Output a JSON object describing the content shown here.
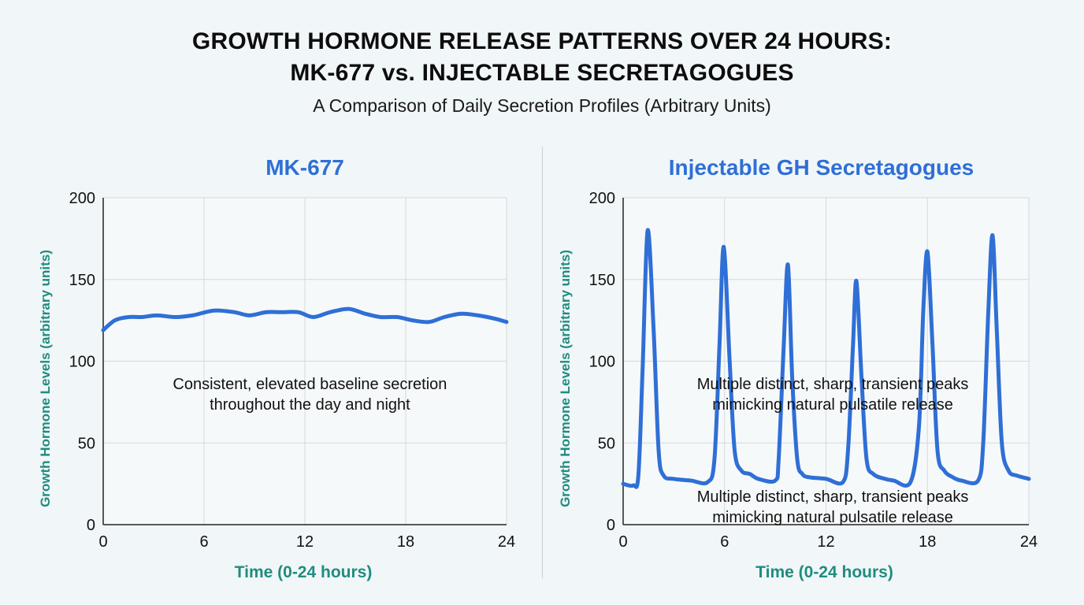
{
  "header": {
    "title_line1": "GROWTH HORMONE RELEASE PATTERNS OVER 24 HOURS:",
    "title_line2": "MK-677 vs. INJECTABLE SECRETAGOGUES",
    "subtitle": "A Comparison of Daily Secretion Profiles (Arbitrary Units)"
  },
  "colors": {
    "line": "#2f6fd6",
    "panel_title": "#2f6fd6",
    "axis_label": "#1f8c7e",
    "grid": "#d3d9dd",
    "axis": "#222222"
  },
  "chart_data": [
    {
      "type": "line",
      "title": "MK-677",
      "xlabel": "Time (0-24 hours)",
      "ylabel": "Growth Hormone Levels (arbitrary units)",
      "xlim": [
        0,
        24
      ],
      "ylim": [
        0,
        200
      ],
      "xticks": [
        0,
        6,
        12,
        18,
        24
      ],
      "yticks": [
        0,
        50,
        100,
        150,
        200
      ],
      "grid": true,
      "x": [
        0,
        0.7,
        1.5,
        2.3,
        3.2,
        4.3,
        5.3,
        6.6,
        7.8,
        8.7,
        9.7,
        10.6,
        11.6,
        12.5,
        13.5,
        14.6,
        15.6,
        16.5,
        17.5,
        18.4,
        19.4,
        20.3,
        21.3,
        22.3,
        23.3,
        24
      ],
      "values": [
        119,
        125,
        127,
        127,
        128,
        127,
        128,
        131,
        130,
        128,
        130,
        130,
        130,
        127,
        130,
        132,
        129,
        127,
        127,
        125,
        124,
        127,
        129,
        128,
        126,
        124
      ],
      "annotations": [
        {
          "text_line1": "Consistent, elevated baseline secretion",
          "text_line2": "throughout the day and night",
          "x": 12.3,
          "y": 83
        }
      ]
    },
    {
      "type": "line",
      "title": "Injectable GH Secretagogues",
      "xlabel": "Time (0-24 hours)",
      "ylabel": "Growth Hormone Levels (arbitrary units)",
      "xlim": [
        0,
        24
      ],
      "ylim": [
        0,
        200
      ],
      "xticks": [
        0,
        6,
        12,
        18,
        24
      ],
      "yticks": [
        0,
        50,
        100,
        150,
        200
      ],
      "grid": true,
      "x": [
        0,
        0.6,
        0.9,
        1.15,
        1.45,
        1.8,
        2.1,
        2.4,
        3.0,
        4.0,
        5.0,
        5.4,
        5.7,
        5.95,
        6.3,
        6.6,
        7.0,
        7.5,
        8.0,
        9.0,
        9.2,
        9.5,
        9.75,
        10.0,
        10.3,
        10.6,
        11.0,
        12.0,
        13.0,
        13.3,
        13.6,
        13.8,
        14.1,
        14.4,
        14.8,
        15.5,
        16.0,
        17.0,
        17.5,
        17.75,
        18.0,
        18.3,
        18.6,
        19.0,
        19.5,
        20.0,
        21.0,
        21.3,
        21.6,
        21.85,
        22.1,
        22.4,
        22.8,
        23.3,
        24.0
      ],
      "values": [
        25,
        24,
        30,
        95,
        180,
        120,
        45,
        30,
        28,
        27,
        26,
        40,
        110,
        170,
        100,
        45,
        33,
        31,
        28,
        27,
        40,
        110,
        159,
        90,
        40,
        31,
        29,
        28,
        26,
        45,
        110,
        149,
        90,
        40,
        31,
        28,
        27,
        26,
        60,
        130,
        167,
        110,
        45,
        33,
        29,
        27,
        27,
        50,
        130,
        177,
        120,
        50,
        33,
        30,
        28
      ],
      "annotations": [
        {
          "text_line1": "Multiple distinct, sharp, transient peaks",
          "text_line2": "mimicking natural pulsatile release",
          "x": 12.4,
          "y": 83
        },
        {
          "text_line1": "Multiple distinct, sharp, transient peaks",
          "text_line2": "mimicking natural pulsatile release",
          "x": 12.4,
          "y": 14
        }
      ]
    }
  ]
}
